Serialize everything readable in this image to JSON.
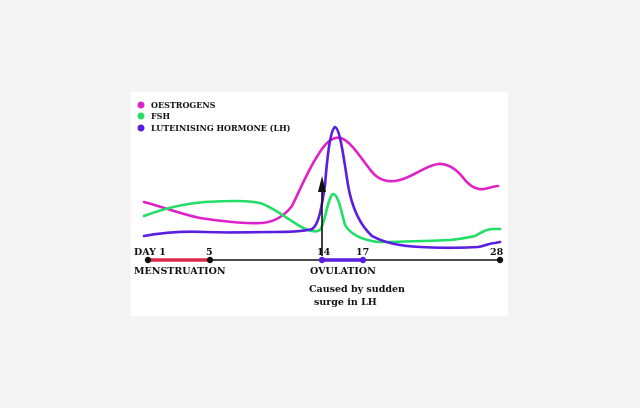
{
  "legend": [
    {
      "label": "OESTROGENS",
      "color": "#e020c8"
    },
    {
      "label": "FSH",
      "color": "#22dd66"
    },
    {
      "label": "LUTEINISING HORMONE (LH)",
      "color": "#5a1ee0"
    }
  ],
  "axis": {
    "day_label": "DAY 1",
    "ticks": [
      "5",
      "14",
      "17",
      "28"
    ]
  },
  "phases": {
    "menstruation": "MENSTRUATION",
    "ovulation": "OVULATION",
    "note_line1": "Caused by sudden",
    "note_line2": "surge in LH"
  },
  "colors": {
    "axis": "#111111",
    "menstruation_bar": "#e02848",
    "ovulation_bar": "#5a1ee0",
    "background": "#f4f4f4",
    "panel": "#ffffff"
  }
}
